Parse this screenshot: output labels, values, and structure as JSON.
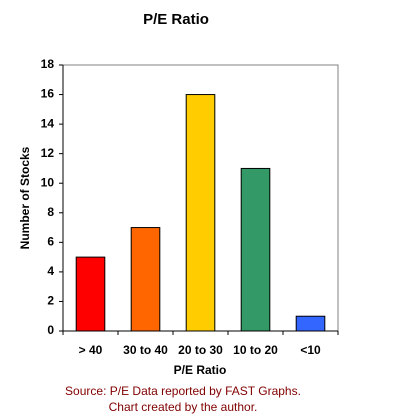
{
  "chart_data": {
    "type": "bar",
    "title": "P/E Ratio",
    "x_label": "P/E Ratio",
    "y_label": "Number of Stocks",
    "categories": [
      "> 40",
      "30 to 40",
      "20 to 30",
      "10 to 20",
      "<10"
    ],
    "values": [
      5,
      7,
      16,
      11,
      1
    ],
    "colors": [
      "#ff0000",
      "#ff6600",
      "#ffcc00",
      "#339966",
      "#3366ff"
    ],
    "ylim": [
      0,
      18
    ],
    "yticks": [
      0,
      2,
      4,
      6,
      8,
      10,
      12,
      14,
      16,
      18
    ],
    "grid": false,
    "source": [
      "Source: P/E Data reported by FAST Graphs.",
      "Chart created by the author."
    ]
  }
}
